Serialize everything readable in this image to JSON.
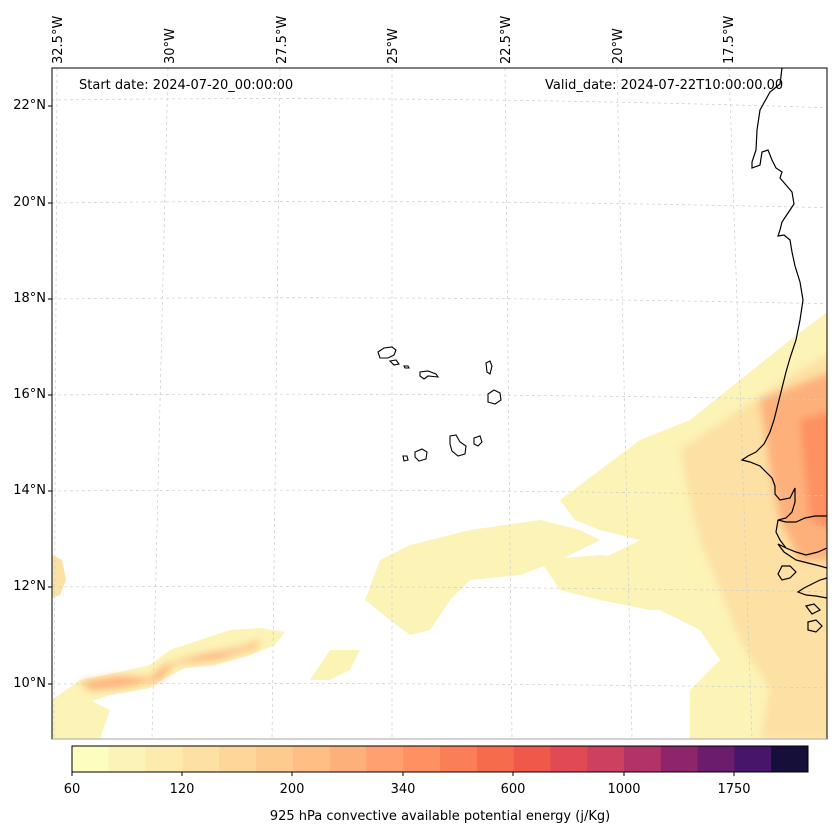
{
  "header": {
    "start_date": "Start date: 2024-07-20_00:00:00",
    "valid_date": "Valid_date: 2024-07-22T10:00:00.00"
  },
  "axes": {
    "longitude_labels": [
      "32.5°W",
      "30°W",
      "27.5°W",
      "25°W",
      "22.5°W",
      "20°W",
      "17.5°W"
    ],
    "latitude_labels": [
      "22°N",
      "20°N",
      "18°N",
      "16°N",
      "14°N",
      "12°N",
      "10°N"
    ]
  },
  "colorbar": {
    "title": "925 hPa convective available potential energy (j/Kg)",
    "tick_labels": [
      "60",
      "120",
      "200",
      "340",
      "600",
      "1000",
      "1750"
    ],
    "colors": [
      "#fcfdbf",
      "#fcf3b6",
      "#fdeaad",
      "#fde0a3",
      "#fdd699",
      "#fecb8f",
      "#febe84",
      "#feb07a",
      "#fea16e",
      "#fe9062",
      "#fb7f56",
      "#f76b4d",
      "#f05849",
      "#e14a54",
      "#cd405f",
      "#b23466",
      "#8e256b",
      "#6b1c6c",
      "#451669",
      "#160f3a"
    ]
  },
  "map_data": {
    "region": "Cape Verde and West African coast",
    "variable": "925 hPa CAPE",
    "units": "j/Kg",
    "lon_range": [
      -33,
      -15.5
    ],
    "lat_range": [
      9,
      22.5
    ]
  },
  "colors": {
    "coastline": "#000000",
    "gridline": "#cccccc"
  }
}
